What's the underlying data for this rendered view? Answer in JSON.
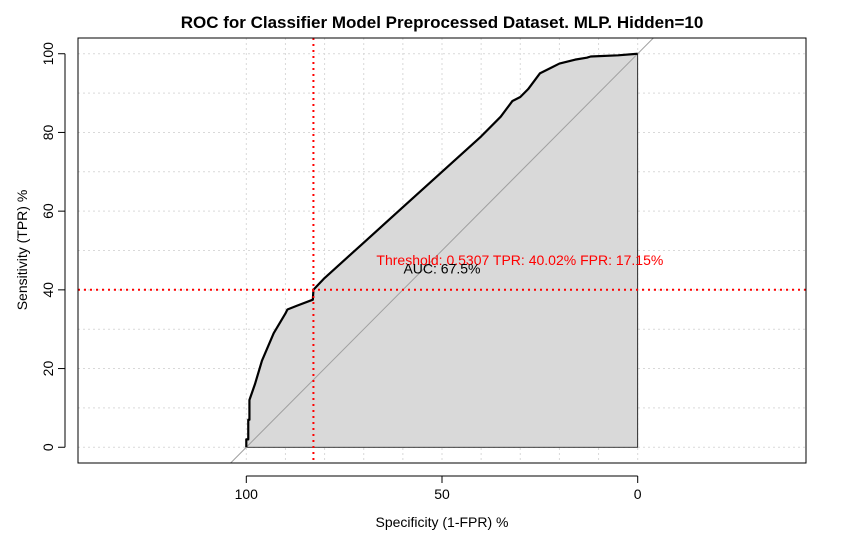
{
  "chart_data": {
    "type": "line",
    "title": "ROC for Classifier Model Preprocessed Dataset. MLP. Hidden=10",
    "xlabel": "Specificity (1-FPR) %",
    "ylabel": "Sensitivity (TPR) %",
    "x_reversed": true,
    "xlim": [
      143,
      -43
    ],
    "ylim": [
      -4,
      104
    ],
    "xticks": [
      100,
      50,
      0
    ],
    "yticks": [
      0,
      20,
      40,
      60,
      80,
      100
    ],
    "xtick_labels": [
      "100",
      "50",
      "0"
    ],
    "ytick_labels": [
      "0",
      "20",
      "40",
      "60",
      "80",
      "100"
    ],
    "grid": true,
    "grid_color": "#d9d9d9",
    "auc_fill_color": "#d9d9d9",
    "curve_color": "#000000",
    "threshold_color": "#ff0000",
    "series": [
      {
        "x": [
          100,
          100,
          99.5,
          99.5,
          99.2,
          99.2,
          97.8,
          96,
          93,
          90,
          89.5,
          87,
          83,
          82.85,
          80,
          70,
          60,
          50,
          40,
          35,
          32,
          30,
          28,
          25,
          22,
          20,
          16,
          13,
          12,
          5,
          0
        ],
        "y": [
          0,
          2,
          2,
          7,
          7,
          12,
          16,
          22,
          29,
          34,
          35,
          36,
          37.5,
          40.02,
          43,
          52,
          61,
          70,
          79,
          84,
          88,
          89,
          91,
          95,
          96.5,
          97.5,
          98.5,
          99,
          99.3,
          99.6,
          100
        ]
      }
    ],
    "threshold": {
      "x": 82.85,
      "y": 40.02,
      "label": "Threshold: 0.5307 TPR: 40.02% FPR: 17.15%"
    },
    "annotations": [
      {
        "text": "AUC: 67.5%",
        "x": 50,
        "y": 48
      }
    ]
  }
}
